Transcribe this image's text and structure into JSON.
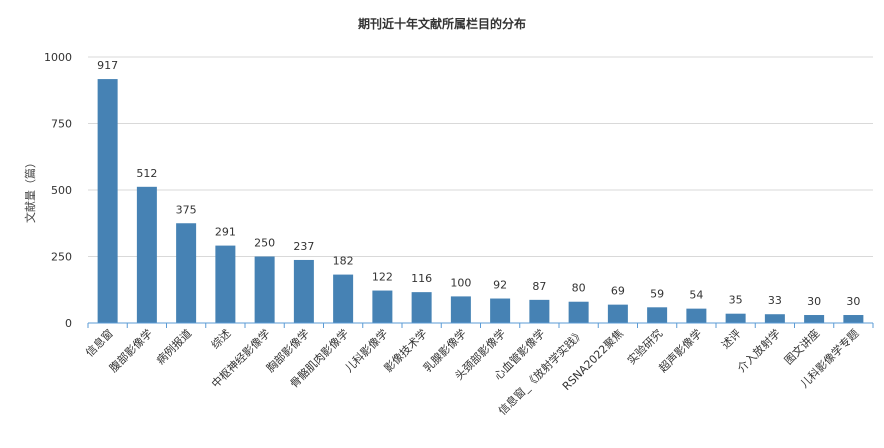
{
  "chart_data": {
    "type": "bar",
    "title": "期刊近十年文献所属栏目的分布",
    "xlabel": "",
    "ylabel": "文献量（篇）",
    "ylim": [
      0,
      1000
    ],
    "yticks": [
      0,
      250,
      500,
      750,
      1000
    ],
    "grid": true,
    "bar_color": "#4682b4",
    "categories": [
      "信息窗",
      "腹部影像学",
      "病例报道",
      "综述",
      "中枢神经影像学",
      "胸部影像学",
      "骨骼肌肉影像学",
      "儿科影像学",
      "影像技术学",
      "乳腺影像学",
      "头颈部影像学",
      "心血管影像学",
      "信息窗_《放射学实践》",
      "RSNA2022聚焦",
      "实验研究",
      "超声影像学",
      "述评",
      "介入放射学",
      "图文讲座",
      "儿科影像学专题"
    ],
    "values": [
      917,
      512,
      375,
      291,
      250,
      237,
      182,
      122,
      116,
      100,
      92,
      87,
      80,
      69,
      59,
      54,
      35,
      33,
      30,
      30
    ]
  }
}
